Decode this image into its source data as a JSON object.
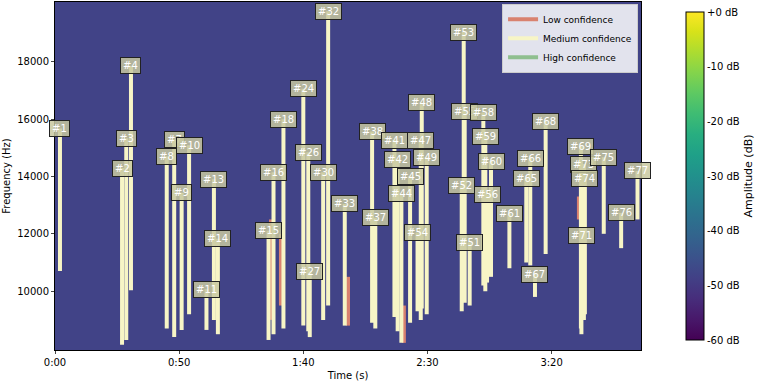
{
  "chart_data": {
    "type": "heatmap",
    "x_label": "Time (s)",
    "y_label": "Frequency (Hz)",
    "xlim": [
      0,
      236
    ],
    "xticks": [
      {
        "value": 0,
        "label": "0:00"
      },
      {
        "value": 50,
        "label": "0:50"
      },
      {
        "value": 100,
        "label": "1:40"
      },
      {
        "value": 150,
        "label": "2:30"
      },
      {
        "value": 200,
        "label": "3:20"
      }
    ],
    "ylim": [
      7950,
      20080
    ],
    "yticks": [
      10000,
      12000,
      14000,
      16000,
      18000
    ],
    "cells": {
      "x_edges": [
        0,
        236
      ],
      "y_edges": [
        7950,
        20080
      ],
      "z": [
        [
          -48
        ]
      ]
    },
    "colorbar": {
      "title": "Amplitude (dB)",
      "range": [
        -60,
        0
      ],
      "ticks": [
        {
          "value": 0,
          "label": "+0 dB"
        },
        {
          "value": -10,
          "label": "-10 dB"
        },
        {
          "value": -20,
          "label": "-20 dB"
        },
        {
          "value": -30,
          "label": "-30 dB"
        },
        {
          "value": -40,
          "label": "-40 dB"
        },
        {
          "value": -50,
          "label": "-50 dB"
        },
        {
          "value": -60,
          "label": "-60 dB"
        }
      ]
    },
    "legend": "top-right",
    "series": [
      {
        "name": "Low confidence",
        "color": "#d9826f"
      },
      {
        "name": "Medium confidence",
        "color": "#f7f5c6"
      },
      {
        "name": "High confidence",
        "color": "#8fbf8f"
      }
    ],
    "detections": [
      {
        "label": "#1",
        "time": 2,
        "f_low": 10700,
        "f_high": 15670,
        "confidence": "Medium confidence"
      },
      {
        "label": "#2",
        "time": 27,
        "f_low": 8130,
        "f_high": 14290,
        "confidence": "Medium confidence"
      },
      {
        "label": "#3",
        "time": 28.7,
        "f_low": 8300,
        "f_high": 15330,
        "confidence": "Medium confidence"
      },
      {
        "label": "#4",
        "time": 30.6,
        "f_low": 10030,
        "f_high": 17850,
        "confidence": "Medium confidence"
      },
      {
        "label": "#8",
        "time": 45,
        "f_low": 8700,
        "f_high": 14700,
        "confidence": "Medium confidence"
      },
      {
        "label": "#7",
        "time": 48,
        "f_low": 8400,
        "f_high": 15290,
        "confidence": "Medium confidence"
      },
      {
        "label": "#9",
        "time": 51,
        "f_low": 8650,
        "f_high": 13430,
        "confidence": "Medium confidence"
      },
      {
        "label": "#10",
        "time": 54,
        "f_low": 9200,
        "f_high": 15090,
        "confidence": "Medium confidence"
      },
      {
        "label": "#11",
        "time": 61,
        "f_low": 8650,
        "f_high": 10070,
        "confidence": "Medium confidence"
      },
      {
        "label": "#13",
        "time": 64,
        "f_low": 9000,
        "f_high": 13900,
        "confidence": "Medium confidence"
      },
      {
        "label": "#14",
        "time": 65.6,
        "f_low": 8500,
        "f_high": 11830,
        "confidence": "Medium confidence"
      },
      {
        "label": "#15",
        "time": 86,
        "f_low": 8300,
        "f_high": 12110,
        "confidence": "Medium confidence"
      },
      {
        "label": "#16",
        "time": 88,
        "f_low": 8500,
        "f_high": 14150,
        "confidence": "Medium confidence"
      },
      {
        "label": "#18",
        "time": 92,
        "f_low": 8700,
        "f_high": 15990,
        "confidence": "Medium confidence"
      },
      {
        "label": "#24",
        "time": 100,
        "f_low": 8800,
        "f_high": 17060,
        "confidence": "Medium confidence"
      },
      {
        "label": "#26",
        "time": 102,
        "f_low": 8600,
        "f_high": 14840,
        "confidence": "Medium confidence"
      },
      {
        "label": "#27",
        "time": 102.6,
        "f_low": 8400,
        "f_high": 10690,
        "confidence": "Medium confidence"
      },
      {
        "label": "#30",
        "time": 108,
        "f_low": 9000,
        "f_high": 14150,
        "confidence": "Medium confidence"
      },
      {
        "label": "#32",
        "time": 110,
        "f_low": 9500,
        "f_high": 19760,
        "confidence": "Medium confidence"
      },
      {
        "label": "#33",
        "time": 116.7,
        "f_low": 8800,
        "f_high": 13040,
        "confidence": "Medium confidence"
      },
      {
        "label": "#38",
        "time": 127.7,
        "f_low": 8900,
        "f_high": 15570,
        "confidence": "Medium confidence"
      },
      {
        "label": "#37",
        "time": 129,
        "f_low": 8700,
        "f_high": 12560,
        "confidence": "Medium confidence"
      },
      {
        "label": "#41",
        "time": 136.7,
        "f_low": 9100,
        "f_high": 15260,
        "confidence": "Medium confidence"
      },
      {
        "label": "#42",
        "time": 138,
        "f_low": 8600,
        "f_high": 14600,
        "confidence": "Medium confidence"
      },
      {
        "label": "#44",
        "time": 139.5,
        "f_low": 8200,
        "f_high": 13390,
        "confidence": "Medium confidence"
      },
      {
        "label": "#45",
        "time": 143,
        "f_low": 8900,
        "f_high": 14010,
        "confidence": "Medium confidence"
      },
      {
        "label": "#54",
        "time": 146,
        "f_low": 9300,
        "f_high": 12040,
        "confidence": "Medium confidence"
      },
      {
        "label": "#47",
        "time": 147.3,
        "f_low": 9000,
        "f_high": 15260,
        "confidence": "Medium confidence"
      },
      {
        "label": "#48",
        "time": 147.7,
        "f_low": 9400,
        "f_high": 16570,
        "confidence": "Medium confidence"
      },
      {
        "label": "#49",
        "time": 149.7,
        "f_low": 9200,
        "f_high": 14670,
        "confidence": "Medium confidence"
      },
      {
        "label": "#52",
        "time": 163.8,
        "f_low": 9300,
        "f_high": 13670,
        "confidence": "Medium confidence"
      },
      {
        "label": "#53",
        "time": 164.6,
        "f_low": 9800,
        "f_high": 19030,
        "confidence": "Medium confidence"
      },
      {
        "label": "#55",
        "time": 165,
        "f_low": 9600,
        "f_high": 16260,
        "confidence": "Medium confidence"
      },
      {
        "label": "#51",
        "time": 167,
        "f_low": 9500,
        "f_high": 11700,
        "confidence": "Medium confidence"
      },
      {
        "label": "#58",
        "time": 172.5,
        "f_low": 10200,
        "f_high": 16230,
        "confidence": "Medium confidence"
      },
      {
        "label": "#59",
        "time": 173.3,
        "f_low": 10000,
        "f_high": 15400,
        "confidence": "Medium confidence"
      },
      {
        "label": "#56",
        "time": 174,
        "f_low": 10300,
        "f_high": 13360,
        "confidence": "Medium confidence"
      },
      {
        "label": "#60",
        "time": 175.6,
        "f_low": 10500,
        "f_high": 14530,
        "confidence": "Medium confidence"
      },
      {
        "label": "#61",
        "time": 183,
        "f_low": 10800,
        "f_high": 12700,
        "confidence": "Medium confidence"
      },
      {
        "label": "#65",
        "time": 189.8,
        "f_low": 11000,
        "f_high": 13940,
        "confidence": "Medium confidence"
      },
      {
        "label": "#66",
        "time": 191.4,
        "f_low": 10900,
        "f_high": 14640,
        "confidence": "Medium confidence"
      },
      {
        "label": "#67",
        "time": 193.3,
        "f_low": 9800,
        "f_high": 10590,
        "confidence": "Medium confidence"
      },
      {
        "label": "#68",
        "time": 197.6,
        "f_low": 11300,
        "f_high": 15920,
        "confidence": "Medium confidence"
      },
      {
        "label": "#69",
        "time": 211.8,
        "f_low": 8700,
        "f_high": 15050,
        "confidence": "Medium confidence"
      },
      {
        "label": "#71",
        "time": 212,
        "f_low": 8500,
        "f_high": 11940,
        "confidence": "Medium confidence"
      },
      {
        "label": "#73",
        "time": 213,
        "f_low": 9000,
        "f_high": 14430,
        "confidence": "Medium confidence"
      },
      {
        "label": "#74",
        "time": 213.4,
        "f_low": 9200,
        "f_high": 13940,
        "confidence": "Medium confidence"
      },
      {
        "label": "#75",
        "time": 221,
        "f_low": 12000,
        "f_high": 14670,
        "confidence": "Medium confidence"
      },
      {
        "label": "#76",
        "time": 228,
        "f_low": 11500,
        "f_high": 12730,
        "confidence": "Medium confidence"
      },
      {
        "label": "#77",
        "time": 234.6,
        "f_low": 12500,
        "f_high": 14190,
        "confidence": "Medium confidence"
      },
      {
        "time": 87,
        "f_low": 9000,
        "f_high": 12500,
        "confidence": "Low confidence"
      },
      {
        "time": 91,
        "f_low": 9500,
        "f_high": 12000,
        "confidence": "Low confidence"
      },
      {
        "time": 118,
        "f_low": 8800,
        "f_high": 10500,
        "confidence": "Low confidence"
      },
      {
        "time": 140.5,
        "f_low": 8200,
        "f_high": 9500,
        "confidence": "Low confidence"
      },
      {
        "time": 211,
        "f_low": 12500,
        "f_high": 13300,
        "confidence": "Low confidence"
      }
    ]
  }
}
